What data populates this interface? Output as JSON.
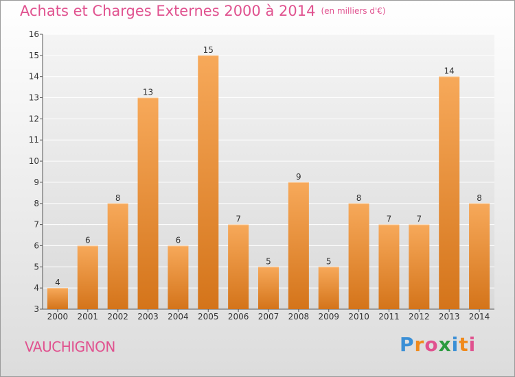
{
  "chart_data": {
    "type": "bar",
    "title": "Achats et Charges Externes 2000 à 2014",
    "subtitle": "(en milliers d'€)",
    "categories": [
      "2000",
      "2001",
      "2002",
      "2003",
      "2004",
      "2005",
      "2006",
      "2007",
      "2008",
      "2009",
      "2010",
      "2011",
      "2012",
      "2013",
      "2014"
    ],
    "values": [
      4,
      6,
      8,
      13,
      6,
      15,
      7,
      5,
      9,
      5,
      8,
      7,
      7,
      14,
      8
    ],
    "ylim": [
      3,
      16
    ],
    "yticks": [
      3,
      4,
      5,
      6,
      7,
      8,
      9,
      10,
      11,
      12,
      13,
      14,
      15,
      16
    ],
    "grid": true,
    "bar_color": "#f0932f",
    "bar_color_light": "#f7a95a",
    "bar_color_dark": "#d4741a",
    "xlabel": "",
    "ylabel": ""
  },
  "footer": {
    "place": "VAUCHIGNON",
    "logo": [
      "P",
      "r",
      "o",
      "x",
      "i",
      "t",
      "i"
    ],
    "logo_colors": [
      "#3a8fd6",
      "#f08a1c",
      "#e0528f",
      "#2a9a3f",
      "#3a8fd6",
      "#f08a1c",
      "#e0528f"
    ]
  },
  "colors": {
    "accent": "#e0528f"
  }
}
